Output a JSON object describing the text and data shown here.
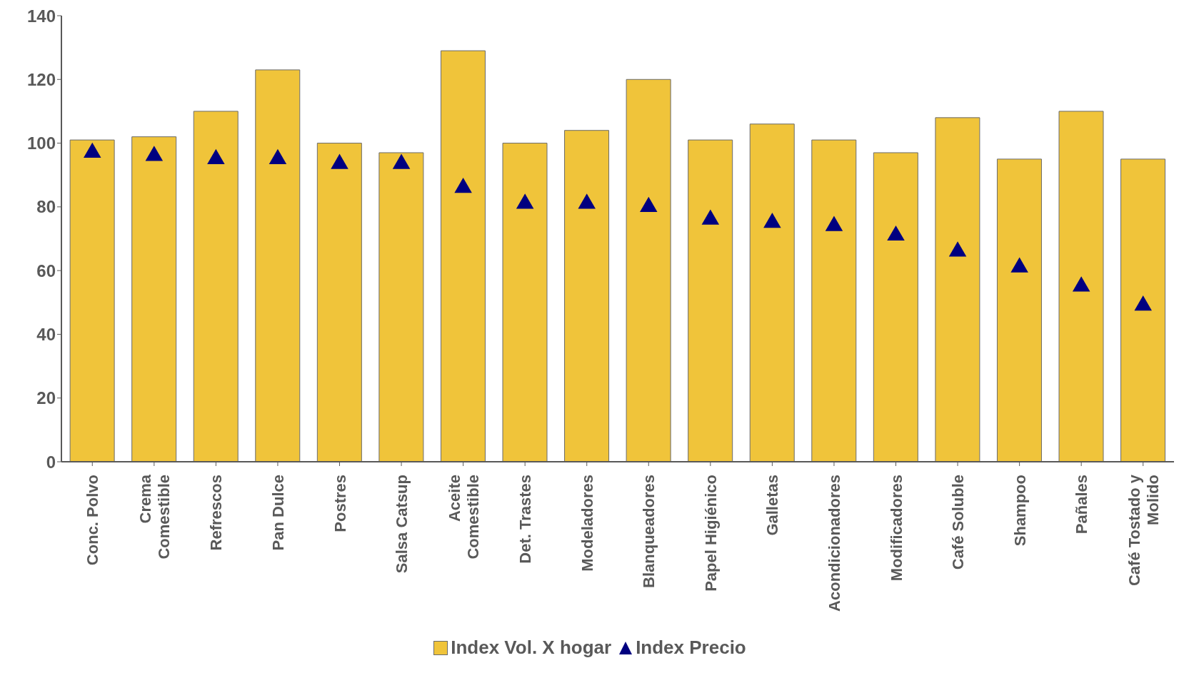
{
  "chart_data": {
    "type": "bar",
    "categories": [
      "Conc. Polvo",
      "Crema Comestible",
      "Refrescos",
      "Pan Dulce",
      "Postres",
      "Salsa Catsup",
      "Aceite Comestible",
      "Det.  Trastes",
      "Modeladores",
      "Blanqueadores",
      "Papel Higiénico",
      "Galletas",
      "Acondicionadores",
      "Modificadores",
      "Café Soluble",
      "Shampoo",
      "Pañales",
      "Café Tostado y Molido"
    ],
    "series": [
      {
        "name": "Index Vol. X hogar",
        "type": "bar",
        "color": "#f0c43a",
        "values": [
          101,
          102,
          110,
          123,
          100,
          97,
          129,
          100,
          104,
          120,
          101,
          106,
          101,
          97,
          108,
          95,
          110,
          95
        ]
      },
      {
        "name": "Index Precio",
        "type": "scatter",
        "color": "#000080",
        "marker": "triangle",
        "values": [
          97,
          96,
          95,
          95,
          93.5,
          93.5,
          86,
          81,
          81,
          80,
          76,
          75,
          74,
          71,
          66,
          61,
          55,
          49
        ]
      }
    ],
    "ylim": [
      0,
      140
    ],
    "yticks": [
      0,
      20,
      40,
      60,
      80,
      100,
      120,
      140
    ],
    "grid": false,
    "legend": "bottom"
  }
}
